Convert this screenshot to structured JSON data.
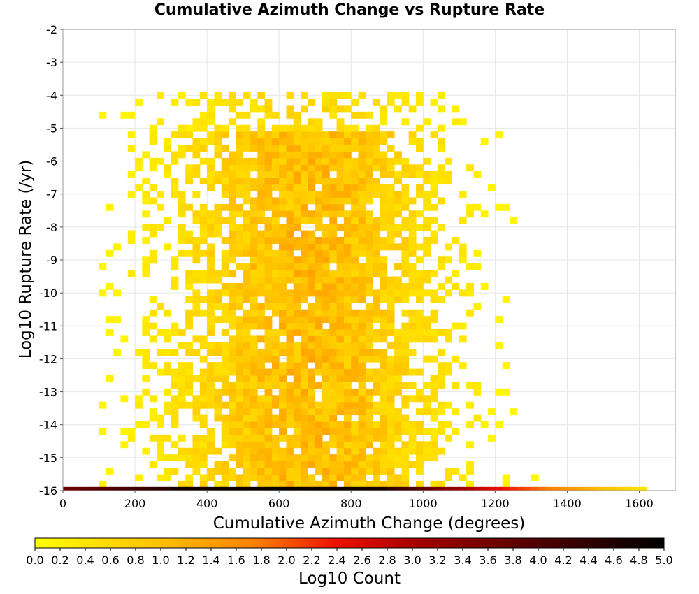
{
  "chart_data": {
    "type": "heatmap",
    "title": "Cumulative Azimuth Change vs Rupture Rate",
    "xlabel": "Cumulative Azimuth Change (degrees)",
    "ylabel": "Log10 Rupture Rate (/yr)",
    "xlim": [
      0,
      1700
    ],
    "ylim": [
      -16,
      -2
    ],
    "x_ticks": [
      "0",
      "200",
      "400",
      "600",
      "800",
      "1000",
      "1200",
      "1400",
      "1600"
    ],
    "y_ticks": [
      "-2",
      "-3",
      "-4",
      "-5",
      "-6",
      "-7",
      "-8",
      "-9",
      "-10",
      "-11",
      "-12",
      "-13",
      "-14",
      "-15",
      "-16"
    ],
    "grid": true,
    "bin_width_x": 20,
    "bin_height_y": 0.2,
    "colorbar": {
      "label": "Log10 Count",
      "min": 0.0,
      "max": 5.0,
      "ticks": [
        "0.0",
        "0.2",
        "0.4",
        "0.6",
        "0.8",
        "1.0",
        "1.2",
        "1.4",
        "1.6",
        "1.8",
        "2.0",
        "2.2",
        "2.4",
        "2.6",
        "2.8",
        "3.0",
        "3.2",
        "3.4",
        "3.6",
        "3.8",
        "4.0",
        "4.2",
        "4.4",
        "4.6",
        "4.8",
        "5.0"
      ],
      "colors": [
        "#ffff00",
        "#ffc000",
        "#ff8000",
        "#ee1000",
        "#a00000",
        "#500000",
        "#000000"
      ]
    },
    "point_cloud_summary": {
      "x_range": [
        100,
        1350
      ],
      "y_range": [
        -15.9,
        -4.0
      ],
      "typical_log10_count_range": [
        0.1,
        1.4
      ],
      "densest_x_range": [
        400,
        900
      ]
    },
    "bottom_row": {
      "log10_rate": -15.9,
      "x_start": 0,
      "x_end": 1620,
      "peak_log10_count": 4.9
    }
  }
}
